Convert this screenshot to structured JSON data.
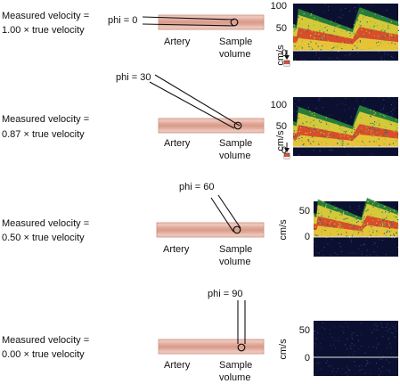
{
  "colors": {
    "artery_fill": "#e6b3a6",
    "artery_stroke": "#c98b7a",
    "beam_stroke": "#111111",
    "spectrogram_bg": "#0b1030",
    "spectrum_high": "#d8402a",
    "spectrum_mid": "#e8d23a",
    "spectrum_low": "#2a8a3a",
    "baseline": "#e6e6e6"
  },
  "icons": {
    "probe": "probe-icon",
    "arrow": "arrow-down-icon"
  },
  "panels": [
    {
      "measured_line1": "Measured velocity =",
      "measured_line2": "1.00 × true velocity",
      "phi_label": "phi = 0",
      "artery_label": "Artery",
      "sample_label_line1": "Sample",
      "sample_label_line2": "volume",
      "unit_label": "cm/s",
      "ticks": [
        "100",
        "50",
        "0"
      ],
      "velocity_fraction": 1.0
    },
    {
      "measured_line1": "Measured velocity =",
      "measured_line2": "0.87 × true velocity",
      "phi_label": "phi = 30",
      "artery_label": "Artery",
      "sample_label_line1": "Sample",
      "sample_label_line2": "volume",
      "unit_label": "cm/s",
      "ticks": [
        "100",
        "50",
        "0"
      ],
      "velocity_fraction": 0.87
    },
    {
      "measured_line1": "Measured velocity =",
      "measured_line2": "0.50 × true velocity",
      "phi_label": "phi = 60",
      "artery_label": "Artery",
      "sample_label_line1": "Sample",
      "sample_label_line2": "volume",
      "unit_label": "cm/s",
      "ticks": [
        "50",
        "0"
      ],
      "velocity_fraction": 0.5
    },
    {
      "measured_line1": "Measured velocity =",
      "measured_line2": "0.00 × true velocity",
      "phi_label": "phi = 90",
      "artery_label": "Artery",
      "sample_label_line1": "Sample",
      "sample_label_line2": "volume",
      "unit_label": "cm/s",
      "ticks": [
        "50",
        "0"
      ],
      "velocity_fraction": 0.0
    }
  ]
}
